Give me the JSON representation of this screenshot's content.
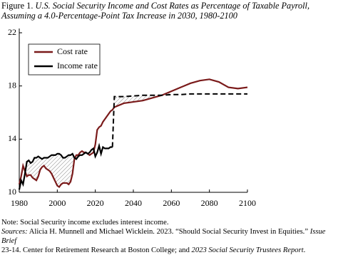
{
  "chart_data": {
    "type": "line",
    "figure_label": "Figure 1.",
    "title_lines": [
      "U.S. Social Security Income and Cost Rates as Percentage of Taxable Payroll,",
      "Assuming a 4.0-Percentage-Point Tax Increase in 2030, 1980-2100"
    ],
    "x": [
      1980,
      1981,
      1982,
      1983,
      1984,
      1985,
      1986,
      1987,
      1988,
      1989,
      1990,
      1991,
      1992,
      1993,
      1994,
      1995,
      1996,
      1997,
      1998,
      1999,
      2000,
      2001,
      2002,
      2003,
      2004,
      2005,
      2006,
      2007,
      2008,
      2009,
      2010,
      2011,
      2012,
      2013,
      2014,
      2015,
      2016,
      2017,
      2018,
      2019,
      2020,
      2021,
      2022,
      2023,
      2024,
      2025,
      2026,
      2027,
      2028,
      2029,
      2030,
      2035,
      2040,
      2045,
      2050,
      2055,
      2060,
      2065,
      2070,
      2075,
      2080,
      2085,
      2090,
      2095,
      2100
    ],
    "series": [
      {
        "name": "Cost rate",
        "color": "#7a1a1a",
        "dash_from": null,
        "values": [
          10.6,
          11.2,
          12.0,
          11.6,
          11.2,
          11.3,
          11.3,
          11.1,
          11.0,
          10.9,
          11.2,
          11.7,
          11.9,
          12.0,
          11.8,
          11.7,
          11.6,
          11.4,
          11.1,
          10.8,
          10.5,
          10.4,
          10.6,
          10.7,
          10.7,
          10.7,
          10.6,
          10.8,
          11.4,
          12.5,
          12.8,
          12.8,
          13.0,
          13.1,
          13.0,
          13.0,
          12.9,
          12.8,
          12.9,
          13.0,
          13.6,
          14.7,
          14.9,
          15.0,
          15.3,
          15.5,
          15.7,
          15.9,
          16.1,
          16.2,
          16.4,
          16.7,
          16.8,
          16.9,
          17.1,
          17.3,
          17.6,
          17.9,
          18.2,
          18.4,
          18.5,
          18.3,
          17.9,
          17.8,
          17.9
        ]
      },
      {
        "name": "Income rate",
        "color": "#000000",
        "dash_from": 2030,
        "values": [
          10.2,
          10.9,
          10.6,
          11.4,
          12.3,
          12.4,
          12.2,
          12.3,
          12.6,
          12.6,
          12.7,
          12.6,
          12.5,
          12.6,
          12.6,
          12.6,
          12.7,
          12.8,
          12.8,
          12.8,
          12.9,
          12.9,
          12.8,
          12.6,
          12.6,
          12.7,
          12.8,
          12.8,
          12.9,
          12.6,
          12.5,
          12.7,
          12.8,
          12.8,
          12.9,
          13.0,
          12.9,
          13.0,
          13.2,
          13.3,
          12.7,
          13.0,
          13.5,
          12.9,
          13.4,
          13.3,
          13.3,
          13.3,
          13.4,
          13.4,
          17.2,
          17.2,
          17.25,
          17.3,
          17.3,
          17.3,
          17.35,
          17.35,
          17.4,
          17.4,
          17.4,
          17.4,
          17.4,
          17.4,
          17.4
        ]
      }
    ],
    "xlim": [
      1980,
      2100
    ],
    "xticks": [
      1980,
      2000,
      2020,
      2040,
      2060,
      2080,
      2100
    ],
    "ylim": [
      10,
      22
    ],
    "yticks": [
      10,
      14,
      18,
      22
    ],
    "legend": "upper left",
    "hatch_where_income_above_cost": true,
    "note": "Note: Social Security income excludes interest income.",
    "sources": [
      "Sources:",
      "Alicia H. Munnell and Michael Wicklein. 2023. “Should Social Security Invest in Equities.”",
      "Issue Brief",
      "23-14. Center for Retirement Research at Boston College; and",
      "2023 Social Security Trustees Report",
      "."
    ]
  }
}
